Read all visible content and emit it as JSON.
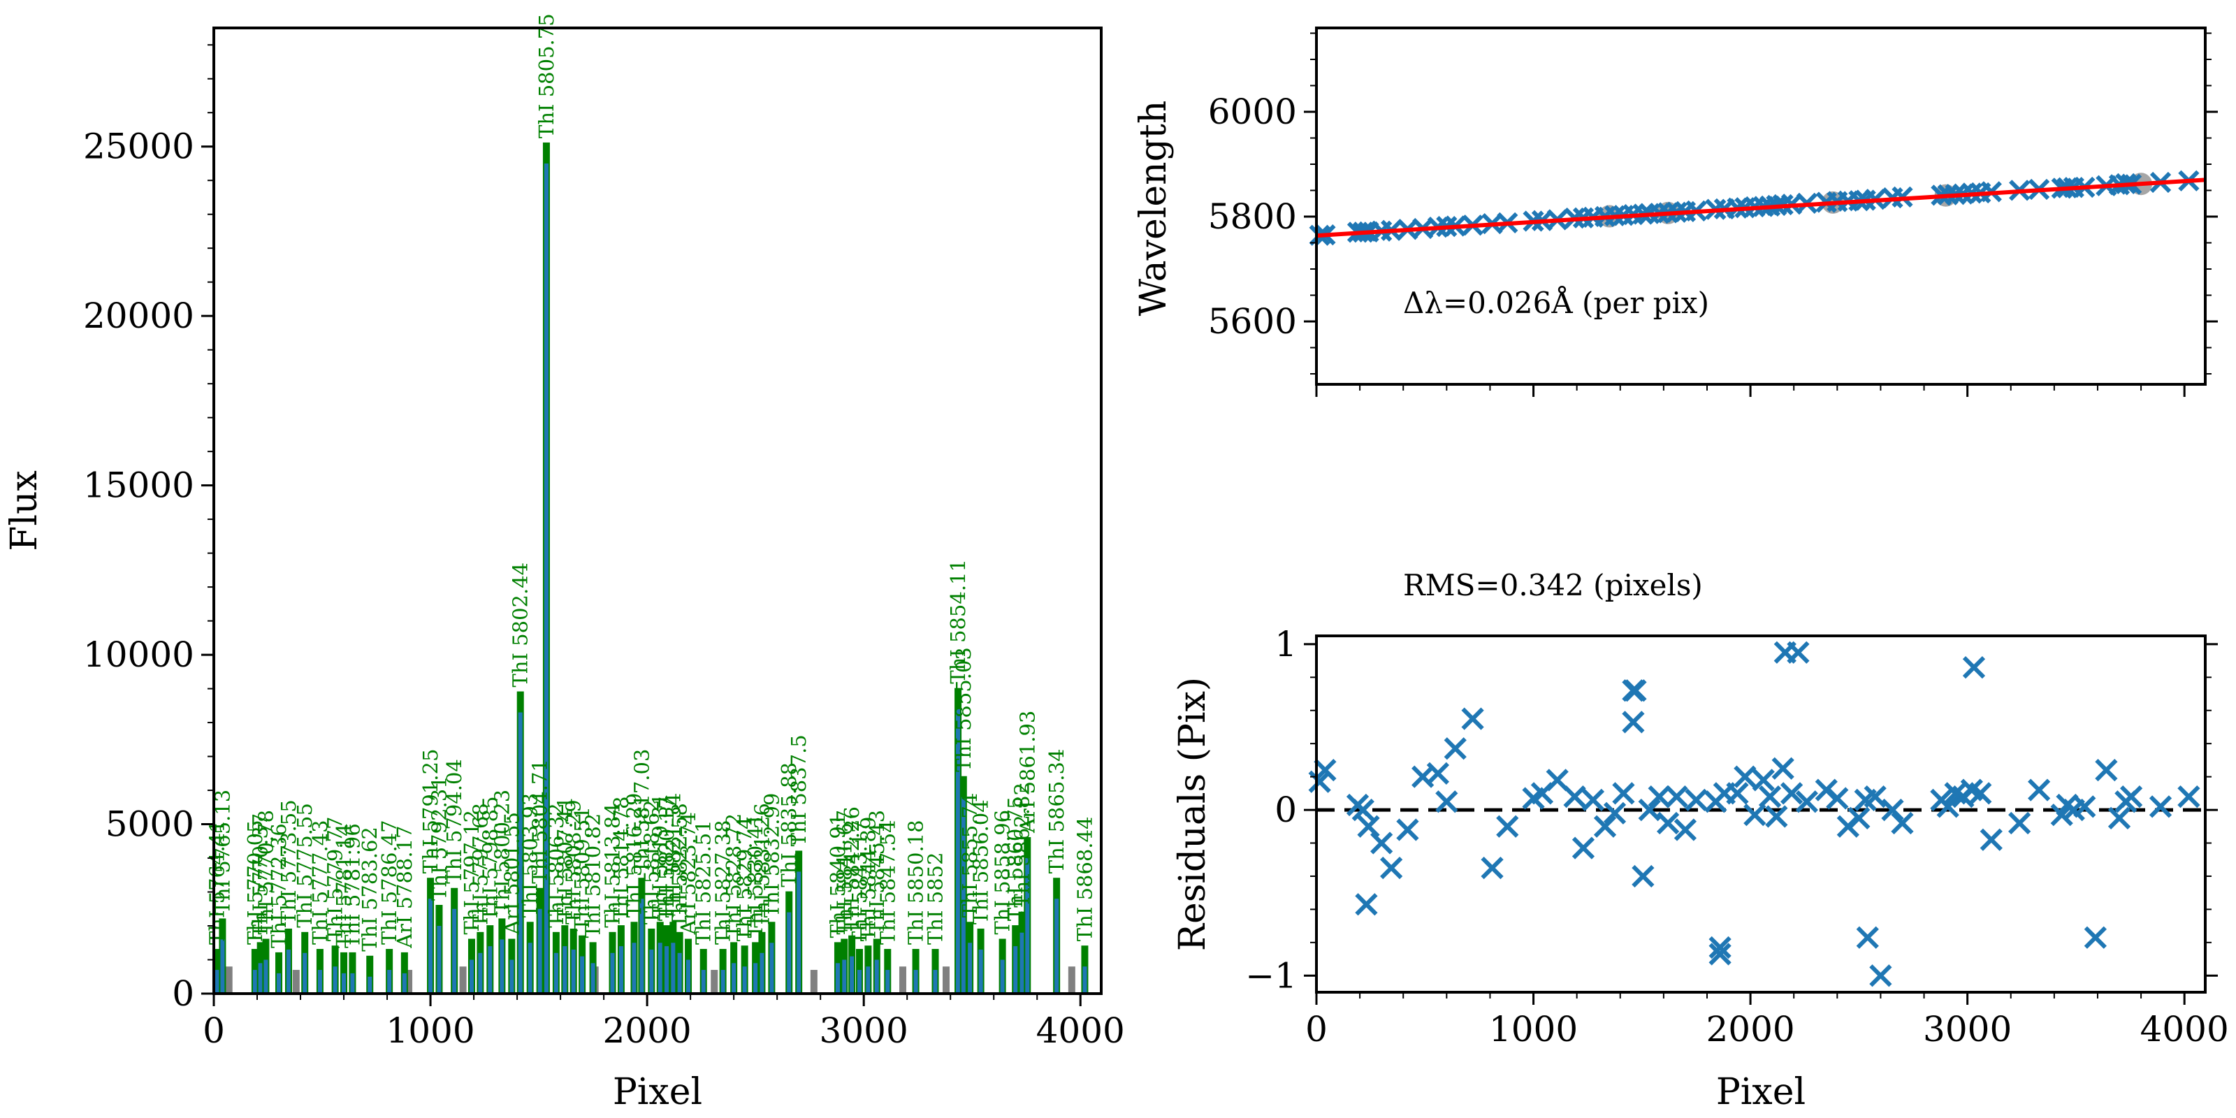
{
  "chart_data": [
    {
      "id": "spectrum",
      "type": "bar",
      "xlabel": "Pixel",
      "ylabel": "Flux",
      "xlim": [
        0,
        4096
      ],
      "ylim": [
        0,
        28500
      ],
      "xticks": [
        0,
        1000,
        2000,
        3000,
        4000
      ],
      "yticks": [
        0,
        5000,
        10000,
        15000,
        20000,
        25000
      ],
      "colors": {
        "spectrum": "#1f77b4",
        "identified": "#008000",
        "unidentified": "#808080"
      },
      "labeled_lines": [
        {
          "x": 15,
          "flux": 700,
          "label": "ThI 5764.41"
        },
        {
          "x": 40,
          "flux": 1600,
          "label": "ThI 5765.13"
        },
        {
          "x": 190,
          "flux": 700,
          "label": "ThI 5770.05"
        },
        {
          "x": 215,
          "flux": 900,
          "label": "ThI 5770.37"
        },
        {
          "x": 240,
          "flux": 1000,
          "label": "ThI 5770.78"
        },
        {
          "x": 300,
          "flux": 600,
          "label": "ThI 5772.36"
        },
        {
          "x": 345,
          "flux": 1300,
          "label": "ThI 5773.55"
        },
        {
          "x": 420,
          "flux": 1200,
          "label": "ThI 5775.55"
        },
        {
          "x": 490,
          "flux": 700,
          "label": "ThI 5777.43"
        },
        {
          "x": 560,
          "flux": 800,
          "label": "ThI 5779.77"
        },
        {
          "x": 600,
          "flux": 600,
          "label": "ThI 5781.14"
        },
        {
          "x": 640,
          "flux": 600,
          "label": "ThI 5781.96"
        },
        {
          "x": 720,
          "flux": 500,
          "label": "ThI 5783.62"
        },
        {
          "x": 810,
          "flux": 700,
          "label": "ThI 5786.47"
        },
        {
          "x": 880,
          "flux": 600,
          "label": "ArI 5788.17"
        },
        {
          "x": 1000,
          "flux": 2800,
          "label": "ThI 5791.25"
        },
        {
          "x": 1040,
          "flux": 2000,
          "label": "ThI 5792.31"
        },
        {
          "x": 1110,
          "flux": 2500,
          "label": "ThI 5794.04"
        },
        {
          "x": 1190,
          "flux": 1000,
          "label": "ThI 5797.12"
        },
        {
          "x": 1230,
          "flux": 1200,
          "label": "ThI 5797.68"
        },
        {
          "x": 1275,
          "flux": 1400,
          "label": "ThI 5798.85"
        },
        {
          "x": 1330,
          "flux": 1600,
          "label": "ThI 5800.23"
        },
        {
          "x": 1375,
          "flux": 1000,
          "label": "ArI 5801.55"
        },
        {
          "x": 1415,
          "flux": 8300,
          "label": "ThI 5802.44"
        },
        {
          "x": 1460,
          "flux": 1500,
          "label": "ThI 5803.93"
        },
        {
          "x": 1505,
          "flux": 2500,
          "label": "ThI 5804.71"
        },
        {
          "x": 1535,
          "flux": 24500,
          "label": "ThI 5805.75"
        },
        {
          "x": 1580,
          "flux": 1200,
          "label": "ThI 5806.32"
        },
        {
          "x": 1620,
          "flux": 1400,
          "label": "ThI 5807.41"
        },
        {
          "x": 1660,
          "flux": 1300,
          "label": "ThI 5808.29"
        },
        {
          "x": 1700,
          "flux": 1100,
          "label": "ThI 5809.51"
        },
        {
          "x": 1750,
          "flux": 900,
          "label": "ThI 5810.82"
        },
        {
          "x": 1840,
          "flux": 1200,
          "label": "ThI 5813.84"
        },
        {
          "x": 1880,
          "flux": 1400,
          "label": "ThI 5814.78"
        },
        {
          "x": 1940,
          "flux": 1500,
          "label": "ThI 5816.29"
        },
        {
          "x": 1975,
          "flux": 2800,
          "label": "ThI 5817.03"
        },
        {
          "x": 2020,
          "flux": 1300,
          "label": "ThI 5818.62"
        },
        {
          "x": 2060,
          "flux": 1500,
          "label": "ThI 5819.31"
        },
        {
          "x": 2090,
          "flux": 1400,
          "label": "ThI 5820.17"
        },
        {
          "x": 2120,
          "flux": 1500,
          "label": "ThI 5821.34"
        },
        {
          "x": 2150,
          "flux": 1200,
          "label": "ThI 5822.58"
        },
        {
          "x": 2190,
          "flux": 1000,
          "label": "ArI 5823.74"
        },
        {
          "x": 2260,
          "flux": 700,
          "label": "ThI 5825.51"
        },
        {
          "x": 2350,
          "flux": 700,
          "label": "ThI 5827.38"
        },
        {
          "x": 2400,
          "flux": 900,
          "label": "ThI 5828.72"
        },
        {
          "x": 2450,
          "flux": 800,
          "label": "ThI 5829.74"
        },
        {
          "x": 2500,
          "flux": 900,
          "label": "ThI 5830.41"
        },
        {
          "x": 2530,
          "flux": 1200,
          "label": "ThI 5831.26"
        },
        {
          "x": 2575,
          "flux": 1500,
          "label": "ThI 5832.99"
        },
        {
          "x": 2655,
          "flux": 2400,
          "label": "ThI 5835.88"
        },
        {
          "x": 2700,
          "flux": 3600,
          "label": "ThI 5837.5"
        },
        {
          "x": 2880,
          "flux": 900,
          "label": "ThI 5840.91"
        },
        {
          "x": 2910,
          "flux": 1000,
          "label": "ThI 5841.67"
        },
        {
          "x": 2945,
          "flux": 1100,
          "label": "ThI 5842.26"
        },
        {
          "x": 2980,
          "flux": 700,
          "label": "ThI 5843.17"
        },
        {
          "x": 3020,
          "flux": 800,
          "label": "ThI 5844.89"
        },
        {
          "x": 3060,
          "flux": 1000,
          "label": "ThI 5845.43"
        },
        {
          "x": 3110,
          "flux": 700,
          "label": "ThI 5847.54"
        },
        {
          "x": 3240,
          "flux": 700,
          "label": "ThI 5850.18"
        },
        {
          "x": 3330,
          "flux": 700,
          "label": "ThI 5852"
        },
        {
          "x": 3435,
          "flux": 8400,
          "label": "ThI 5854.11"
        },
        {
          "x": 3460,
          "flux": 5800,
          "label": "ThI 5855.03"
        },
        {
          "x": 3490,
          "flux": 1500,
          "label": "ThI 5855.74"
        },
        {
          "x": 3540,
          "flux": 1300,
          "label": "ThI 5856.04"
        },
        {
          "x": 3640,
          "flux": 1000,
          "label": "ThI 5858.96"
        },
        {
          "x": 3700,
          "flux": 1400,
          "label": "ThI 5860.75"
        },
        {
          "x": 3730,
          "flux": 1800,
          "label": "ThI 5862.82"
        },
        {
          "x": 3755,
          "flux": 4000,
          "label": "ArI 5861.93"
        },
        {
          "x": 3890,
          "flux": 2800,
          "label": "ThI 5865.34"
        },
        {
          "x": 4020,
          "flux": 800,
          "label": "ThI 5868.44"
        }
      ],
      "unlabeled_peaks": [
        {
          "x": 70,
          "flux": 800
        },
        {
          "x": 380,
          "flux": 700
        },
        {
          "x": 900,
          "flux": 700
        },
        {
          "x": 1150,
          "flux": 800
        },
        {
          "x": 1760,
          "flux": 800
        },
        {
          "x": 2310,
          "flux": 700
        },
        {
          "x": 2770,
          "flux": 700
        },
        {
          "x": 3180,
          "flux": 800
        },
        {
          "x": 3380,
          "flux": 800
        },
        {
          "x": 3960,
          "flux": 800
        }
      ]
    },
    {
      "id": "wavelength-fit",
      "type": "scatter",
      "ylabel": "Wavelength",
      "xlim": [
        0,
        4096
      ],
      "ylim": [
        5480,
        6160
      ],
      "yticks": [
        5600,
        5800,
        6000
      ],
      "annotation": "Δλ=0.026Å (per pix)",
      "colors": {
        "points": "#1f77b4",
        "fit": "#ff0000",
        "rejected": "#808080"
      },
      "fit_line": {
        "x": [
          0,
          4096
        ],
        "y": [
          5763.7,
          5870.2
        ]
      },
      "points": {
        "x": [
          15,
          40,
          190,
          215,
          240,
          300,
          345,
          420,
          490,
          560,
          600,
          640,
          720,
          810,
          880,
          1000,
          1040,
          1110,
          1190,
          1230,
          1275,
          1330,
          1375,
          1415,
          1460,
          1505,
          1535,
          1580,
          1620,
          1660,
          1700,
          1750,
          1840,
          1880,
          1940,
          1975,
          2020,
          2060,
          2090,
          2120,
          2150,
          2190,
          2260,
          2350,
          2400,
          2450,
          2500,
          2530,
          2575,
          2655,
          2700,
          2880,
          2910,
          2945,
          2980,
          3020,
          3060,
          3110,
          3240,
          3330,
          3435,
          3460,
          3490,
          3540,
          3640,
          3700,
          3730,
          3755,
          3890,
          4020
        ],
        "y": [
          5764.4,
          5765.1,
          5770.1,
          5770.4,
          5770.8,
          5772.4,
          5773.6,
          5775.6,
          5777.4,
          5779.8,
          5781.1,
          5782.0,
          5783.6,
          5786.5,
          5788.2,
          5791.3,
          5792.3,
          5794.0,
          5797.1,
          5797.7,
          5798.9,
          5800.2,
          5801.6,
          5802.4,
          5803.9,
          5804.7,
          5805.8,
          5806.3,
          5807.4,
          5808.3,
          5809.5,
          5810.8,
          5813.8,
          5814.8,
          5816.3,
          5817.0,
          5818.6,
          5819.3,
          5820.2,
          5821.3,
          5822.6,
          5823.7,
          5825.5,
          5827.4,
          5828.7,
          5829.7,
          5830.4,
          5831.3,
          5833.0,
          5835.9,
          5837.5,
          5840.9,
          5841.7,
          5842.3,
          5843.2,
          5844.9,
          5845.4,
          5847.5,
          5850.2,
          5852.0,
          5854.1,
          5855.0,
          5855.7,
          5856.0,
          5859.0,
          5860.8,
          5862.8,
          5861.9,
          5865.3,
          5868.4
        ]
      },
      "rejected_points": {
        "x": [
          1350,
          1620,
          2380,
          2900,
          3800
        ],
        "y": [
          5800.6,
          5806.9,
          5826.9,
          5840.4,
          5862.3
        ]
      }
    },
    {
      "id": "residuals",
      "type": "scatter",
      "xlabel": "Pixel",
      "ylabel": "Residuals (Pix)",
      "xlim": [
        0,
        4096
      ],
      "ylim": [
        -1.1,
        1.05
      ],
      "xticks": [
        0,
        1000,
        2000,
        3000,
        4000
      ],
      "yticks": [
        -1,
        0,
        1
      ],
      "annotation": "RMS=0.342 (pixels)",
      "zero_line": 0,
      "colors": {
        "points": "#1f77b4",
        "zero_line": "#000000"
      },
      "points": {
        "x": [
          15,
          40,
          190,
          215,
          240,
          300,
          345,
          420,
          490,
          560,
          600,
          640,
          720,
          810,
          880,
          1000,
          1040,
          1110,
          1190,
          1230,
          1275,
          1330,
          1375,
          1415,
          1460,
          1505,
          1535,
          1580,
          1620,
          1660,
          1700,
          1750,
          1840,
          1880,
          1940,
          1975,
          2020,
          2060,
          2090,
          2120,
          2150,
          2190,
          2260,
          2350,
          2400,
          2450,
          2500,
          2530,
          2575,
          2655,
          2700,
          2880,
          2910,
          2945,
          2980,
          3020,
          3060,
          3110,
          3240,
          3330,
          3435,
          3460,
          3490,
          3540,
          3640,
          3700,
          3730,
          3755,
          3890,
          4020,
          1460,
          1470,
          2160,
          2220,
          3030,
          1860,
          1860,
          2540,
          3590,
          2600,
          230
        ],
        "y": [
          0.17,
          0.24,
          0.03,
          0.0,
          -0.1,
          -0.2,
          -0.35,
          -0.12,
          0.2,
          0.22,
          0.05,
          0.37,
          0.55,
          -0.35,
          -0.1,
          0.07,
          0.1,
          0.18,
          0.08,
          -0.23,
          0.06,
          -0.1,
          -0.02,
          0.1,
          0.53,
          -0.4,
          0.0,
          0.08,
          -0.08,
          0.08,
          -0.12,
          0.06,
          0.05,
          0.1,
          0.1,
          0.2,
          -0.03,
          0.18,
          0.08,
          -0.04,
          0.25,
          0.1,
          0.05,
          0.12,
          0.07,
          -0.1,
          -0.05,
          0.06,
          0.08,
          0.0,
          -0.08,
          0.06,
          0.02,
          0.1,
          0.08,
          0.12,
          0.1,
          -0.18,
          -0.08,
          0.12,
          -0.03,
          0.03,
          0.0,
          0.02,
          0.24,
          -0.05,
          0.05,
          0.08,
          0.02,
          0.08,
          0.72,
          0.72,
          0.95,
          0.95,
          0.86,
          -0.83,
          -0.87,
          -0.77,
          -0.77,
          -1.0,
          -0.57
        ]
      }
    }
  ]
}
